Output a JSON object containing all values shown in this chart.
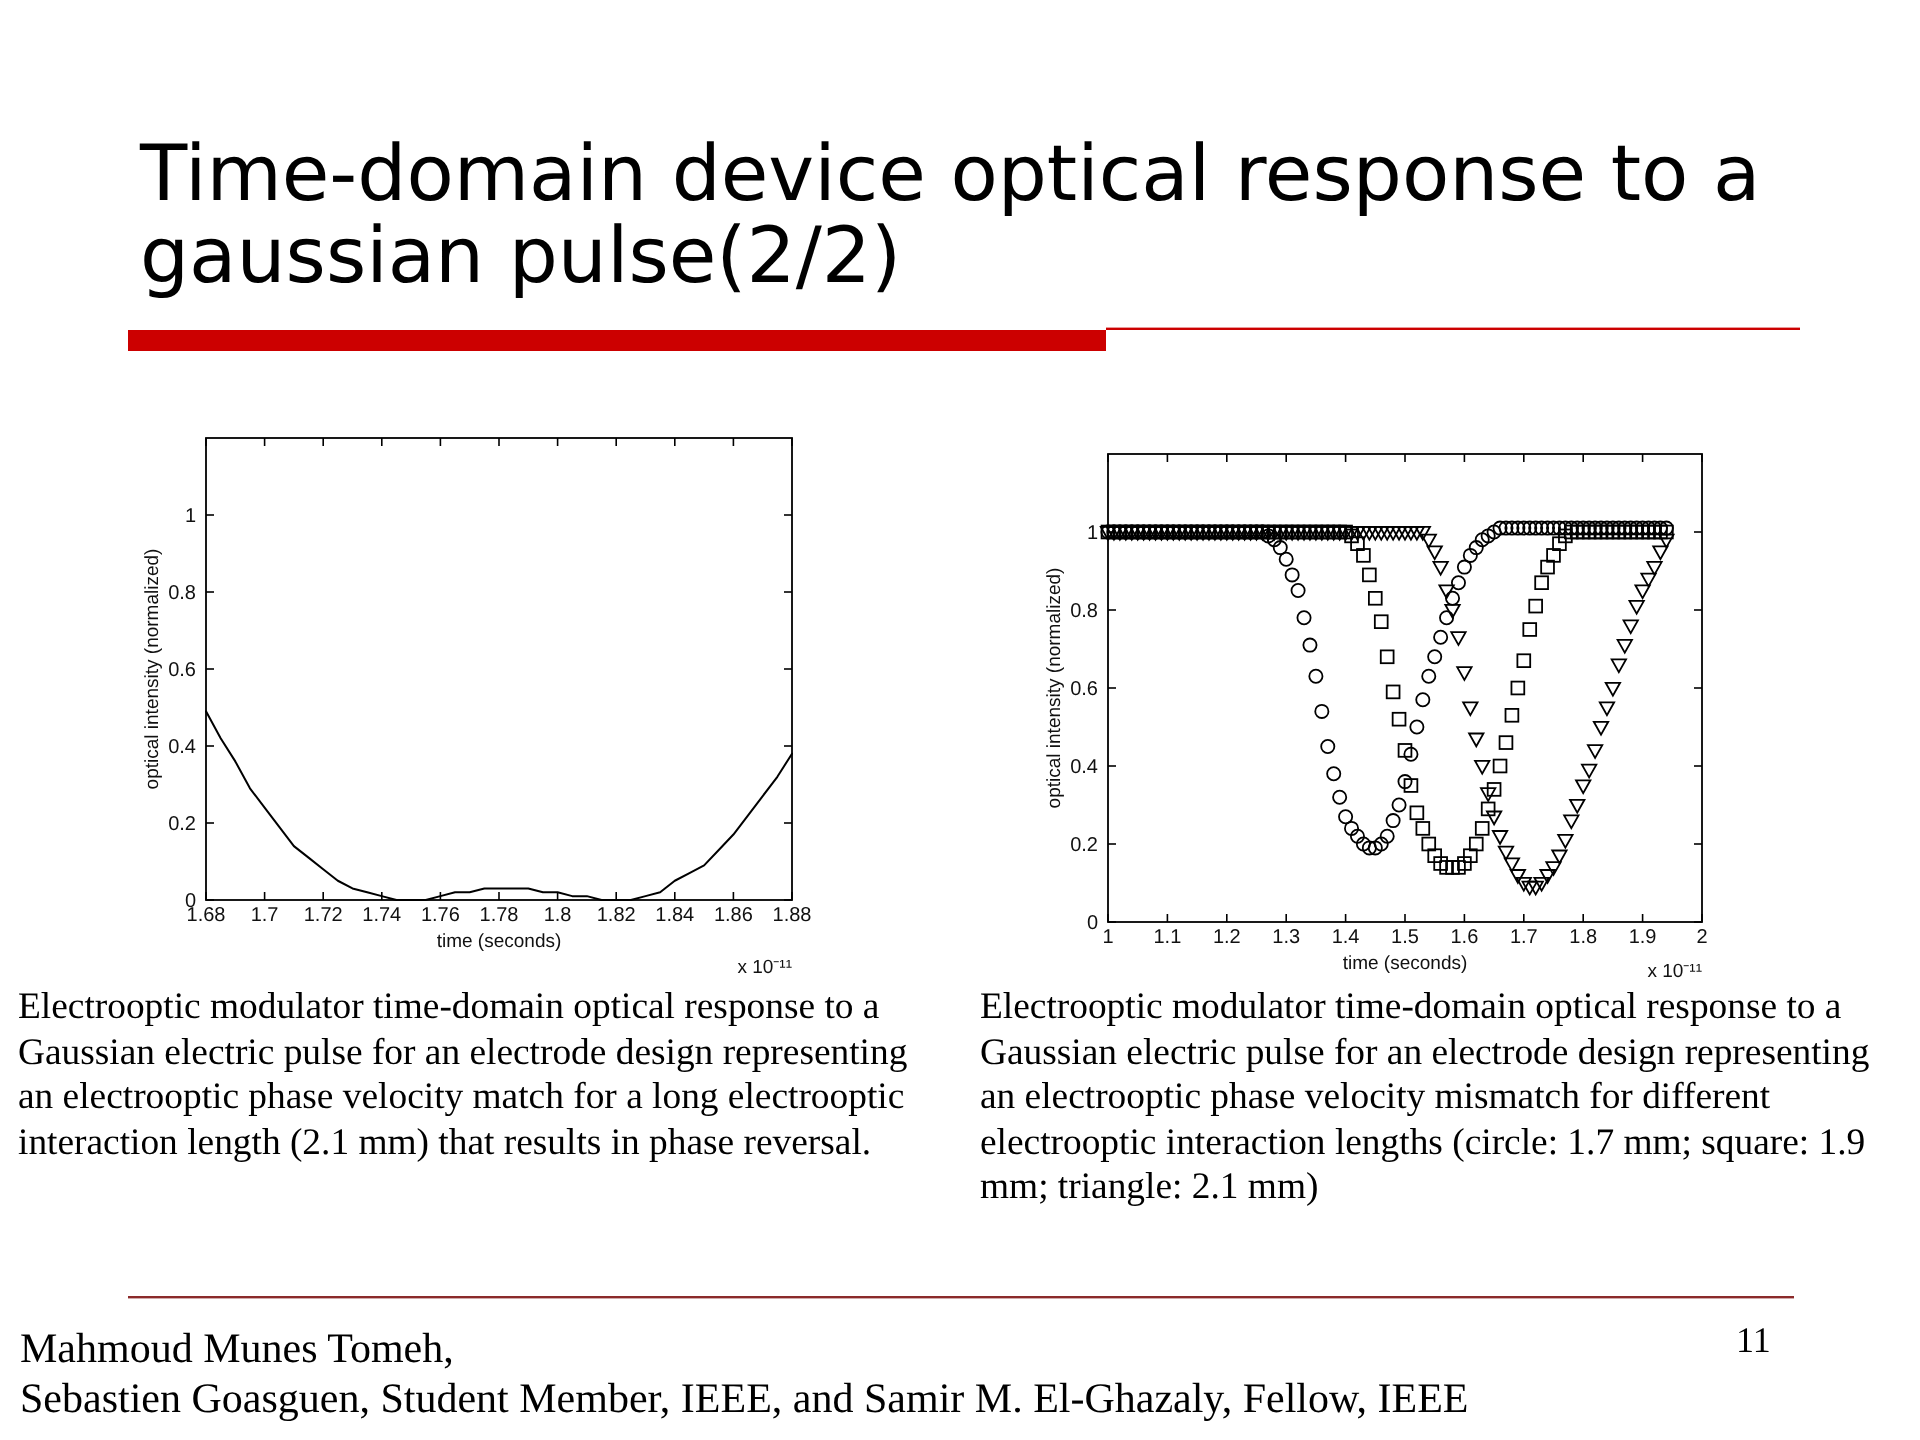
{
  "chart_data": [
    {
      "type": "other",
      "title": "Time-domain device optical response to a gaussian pulse(2/2)"
    },
    {
      "type": "line",
      "xlabel": "time (seconds)",
      "ylabel": "optical intensity (normalized)",
      "x": [
        1.68,
        1.685,
        1.69,
        1.695,
        1.7,
        1.705,
        1.71,
        1.715,
        1.72,
        1.725,
        1.73,
        1.735,
        1.74,
        1.745,
        1.75,
        1.755,
        1.76,
        1.765,
        1.77,
        1.775,
        1.78,
        1.785,
        1.79,
        1.795,
        1.8,
        1.805,
        1.81,
        1.815,
        1.82,
        1.825,
        1.83,
        1.835,
        1.84,
        1.845,
        1.85,
        1.855,
        1.86,
        1.865,
        1.87,
        1.875,
        1.88
      ],
      "values": [
        0.49,
        0.42,
        0.36,
        0.29,
        0.24,
        0.19,
        0.14,
        0.11,
        0.08,
        0.05,
        0.03,
        0.02,
        0.01,
        0,
        0,
        0,
        0.01,
        0.02,
        0.02,
        0.03,
        0.03,
        0.03,
        0.03,
        0.02,
        0.02,
        0.01,
        0.01,
        0,
        0,
        0,
        0.01,
        0.02,
        0.05,
        0.07,
        0.09,
        0.13,
        0.17,
        0.22,
        0.27,
        0.32,
        0.38
      ],
      "color": "#000000",
      "xlim": [
        1.68,
        1.88
      ],
      "xticks": [
        1.68,
        1.7,
        1.72,
        1.74,
        1.76,
        1.78,
        1.8,
        1.82,
        1.84,
        1.86,
        1.88
      ],
      "ylim": [
        0,
        1.2
      ],
      "yticks": [
        0,
        0.2,
        0.4,
        0.6,
        0.8,
        1
      ],
      "annotations": [
        "x 10⁻¹¹",
        "Electrooptic modulator time-domain optical response to a Gaussian electric pulse for an electrode design representing an electrooptic phase velocity match for a long electrooptic interaction length (2.1 mm) that results in phase reversal."
      ]
    },
    {
      "type": "scatter",
      "xlabel": "time (seconds)",
      "ylabel": "optical intensity (normalized)",
      "x": [
        1,
        1.01,
        1.02,
        1.03,
        1.04,
        1.05,
        1.06,
        1.07,
        1.08,
        1.09,
        1.1,
        1.11,
        1.12,
        1.13,
        1.14,
        1.15,
        1.16,
        1.17,
        1.18,
        1.19,
        1.2,
        1.21,
        1.22,
        1.23,
        1.24,
        1.25,
        1.26,
        1.27,
        1.28,
        1.29,
        1.3,
        1.31,
        1.32,
        1.33,
        1.34,
        1.35,
        1.36,
        1.37,
        1.38,
        1.39,
        1.4,
        1.41,
        1.42,
        1.43,
        1.44,
        1.45,
        1.46,
        1.47,
        1.48,
        1.49,
        1.5,
        1.51,
        1.52,
        1.53,
        1.54,
        1.55,
        1.56,
        1.57,
        1.58,
        1.59,
        1.6,
        1.61,
        1.62,
        1.63,
        1.64,
        1.65,
        1.66,
        1.67,
        1.68,
        1.69,
        1.7,
        1.71,
        1.72,
        1.73,
        1.74,
        1.75,
        1.76,
        1.77,
        1.78,
        1.79,
        1.8,
        1.81,
        1.82,
        1.83,
        1.84,
        1.85,
        1.86,
        1.87,
        1.88,
        1.89,
        1.9,
        1.91,
        1.92,
        1.93,
        1.94
      ],
      "series": [
        {
          "color": "#000000",
          "marker": "circle",
          "values": [
            1,
            1,
            1,
            1,
            1,
            1,
            1,
            1,
            1,
            1,
            1,
            1,
            1,
            1,
            1,
            1,
            1,
            1,
            1,
            1,
            1,
            1,
            1,
            1,
            1,
            1,
            1,
            0.99,
            0.98,
            0.96,
            0.93,
            0.89,
            0.85,
            0.78,
            0.71,
            0.63,
            0.54,
            0.45,
            0.38,
            0.32,
            0.27,
            0.24,
            0.22,
            0.2,
            0.19,
            0.19,
            0.2,
            0.22,
            0.26,
            0.3,
            0.36,
            0.43,
            0.5,
            0.57,
            0.63,
            0.68,
            0.73,
            0.78,
            0.83,
            0.87,
            0.91,
            0.94,
            0.96,
            0.98,
            0.99,
            1,
            1.01,
            1.01,
            1.01,
            1.01,
            1.01,
            1.01,
            1.01,
            1.01,
            1.01,
            1.01,
            1.01,
            1.01,
            1.01,
            1.01,
            1.01,
            1.01,
            1.01,
            1.01,
            1.01,
            1.01,
            1.01,
            1.01,
            1.01,
            1.01,
            1.01,
            1.01,
            1.01,
            1.01,
            1.01
          ]
        },
        {
          "color": "#000000",
          "marker": "square",
          "values": [
            1,
            1,
            1,
            1,
            1,
            1,
            1,
            1,
            1,
            1,
            1,
            1,
            1,
            1,
            1,
            1,
            1,
            1,
            1,
            1,
            1,
            1,
            1,
            1,
            1,
            1,
            1,
            1,
            1,
            1,
            1,
            1,
            1,
            1,
            1,
            1,
            1,
            1,
            1,
            1,
            1,
            0.99,
            0.97,
            0.94,
            0.89,
            0.83,
            0.77,
            0.68,
            0.59,
            0.52,
            0.44,
            0.35,
            0.28,
            0.24,
            0.2,
            0.17,
            0.15,
            0.14,
            0.14,
            0.14,
            0.15,
            0.17,
            0.2,
            0.24,
            0.29,
            0.34,
            0.4,
            0.46,
            0.53,
            0.6,
            0.67,
            0.75,
            0.81,
            0.87,
            0.91,
            0.94,
            0.97,
            0.99,
            1,
            1,
            1,
            1,
            1,
            1,
            1,
            1,
            1,
            1,
            1,
            1,
            1,
            1,
            1,
            1,
            1
          ]
        },
        {
          "color": "#000000",
          "marker": "triangle",
          "values": [
            1,
            1,
            1,
            1,
            1,
            1,
            1,
            1,
            1,
            1,
            1,
            1,
            1,
            1,
            1,
            1,
            1,
            1,
            1,
            1,
            1,
            1,
            1,
            1,
            1,
            1,
            1,
            1,
            1,
            1,
            1,
            1,
            1,
            1,
            1,
            1,
            1,
            1,
            1,
            1,
            1,
            1,
            1,
            1,
            1,
            1,
            1,
            1,
            1,
            1,
            1,
            1,
            1,
            1,
            0.98,
            0.95,
            0.91,
            0.85,
            0.8,
            0.73,
            0.64,
            0.55,
            0.47,
            0.4,
            0.33,
            0.27,
            0.22,
            0.18,
            0.15,
            0.12,
            0.1,
            0.09,
            0.09,
            0.1,
            0.12,
            0.14,
            0.17,
            0.21,
            0.26,
            0.3,
            0.35,
            0.39,
            0.44,
            0.5,
            0.55,
            0.6,
            0.66,
            0.71,
            0.76,
            0.81,
            0.85,
            0.88,
            0.91,
            0.95,
            0.98
          ]
        }
      ],
      "xlim": [
        1,
        2
      ],
      "xticks": [
        1,
        1.1,
        1.2,
        1.3,
        1.4,
        1.5,
        1.6,
        1.7,
        1.8,
        1.9,
        2
      ],
      "ylim": [
        0,
        1.2
      ],
      "yticks": [
        0,
        0.2,
        0.4,
        0.6,
        0.8,
        1
      ],
      "annotations": [
        "x 10⁻¹¹",
        "Electrooptic modulator time-domain optical response to a Gaussian electric pulse for an electrode design representing an electrooptic phase velocity mismatch for different electrooptic interaction lengths (circle: 1.7 mm; square: 1.9 mm; triangle: 2.1 mm)"
      ]
    },
    {
      "type": "other",
      "annotations": [
        "Mahmoud Munes Tomeh,",
        "Sebastien Goasguen, Student Member, IEEE, and Samir M. El-Ghazaly, Fellow, IEEE",
        "11"
      ]
    }
  ]
}
